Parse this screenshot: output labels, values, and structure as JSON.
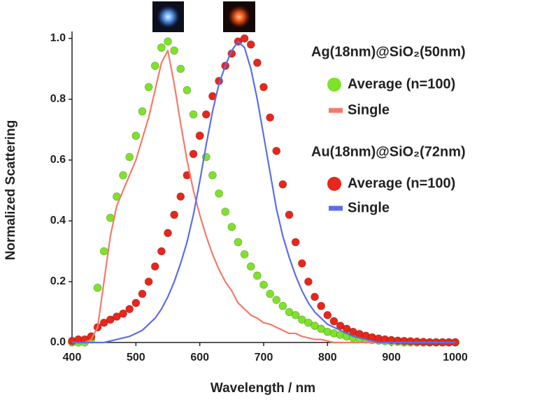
{
  "chart_data": {
    "type": "scatter",
    "x_label": "Wavelength / nm",
    "y_label": "Normalized Scattering",
    "legend_titles": [
      "Ag(18nm)@SiO₂(50nm)",
      "Au(18nm)@SiO₂(72nm)"
    ],
    "xlim": [
      400,
      1000
    ],
    "xticks": [
      400,
      500,
      600,
      700,
      800,
      900,
      1000
    ],
    "ylim": [
      0,
      1
    ],
    "yticks": [
      {
        "value": 0,
        "label": "0.0"
      },
      0.2,
      0.4,
      0.6,
      0.8,
      {
        "value": 1,
        "label": "1.0"
      }
    ],
    "x": [
      400,
      410,
      420,
      430,
      440,
      450,
      460,
      470,
      480,
      490,
      500,
      510,
      520,
      530,
      540,
      550,
      560,
      570,
      580,
      590,
      600,
      610,
      620,
      630,
      640,
      650,
      660,
      670,
      680,
      690,
      700,
      710,
      720,
      730,
      740,
      750,
      760,
      770,
      780,
      790,
      800,
      810,
      820,
      830,
      840,
      850,
      860,
      870,
      880,
      890,
      900,
      910,
      920,
      930,
      940,
      950,
      960,
      970,
      980,
      990,
      1000
    ],
    "series": [
      {
        "name": "Average (n=100)",
        "mode": "markers",
        "color": "#7fe22a",
        "values": [
          0,
          0,
          0,
          0.01,
          0.18,
          0.3,
          0.41,
          0.48,
          0.55,
          0.61,
          0.68,
          0.76,
          0.84,
          0.91,
          0.97,
          0.99,
          0.96,
          0.9,
          0.83,
          0.75,
          0.68,
          0.61,
          0.55,
          0.49,
          0.43,
          0.38,
          0.33,
          0.29,
          0.25,
          0.22,
          0.19,
          0.16,
          0.14,
          0.12,
          0.1,
          0.09,
          0.075,
          0.065,
          0.055,
          0.045,
          0.035,
          0.03,
          0.025,
          0.02,
          0.015,
          0.012,
          0.01,
          0.008,
          0.006,
          0.004,
          0.003,
          0.002,
          0,
          0,
          0,
          0,
          0,
          0,
          0,
          0,
          0
        ]
      },
      {
        "name": "Single",
        "mode": "line",
        "color": "#f47a68",
        "values": [
          0,
          0,
          0,
          0.01,
          0.05,
          0.2,
          0.35,
          0.45,
          0.5,
          0.55,
          0.6,
          0.67,
          0.74,
          0.83,
          0.92,
          0.96,
          0.85,
          0.72,
          0.6,
          0.5,
          0.42,
          0.35,
          0.29,
          0.24,
          0.2,
          0.17,
          0.13,
          0.11,
          0.09,
          0.08,
          0.065,
          0.06,
          0.05,
          0.04,
          0.03,
          0.03,
          0.02,
          0.015,
          0.01,
          0.01,
          0.005,
          0,
          0,
          0,
          0,
          0,
          0,
          0,
          0,
          0,
          0,
          0,
          0,
          0,
          0,
          0,
          0,
          0,
          0,
          0,
          0
        ]
      },
      {
        "name": "Average (n=100)",
        "mode": "markers",
        "color": "#e8261c",
        "values": [
          0.005,
          0.01,
          0.01,
          0.02,
          0.05,
          0.065,
          0.075,
          0.085,
          0.095,
          0.11,
          0.13,
          0.16,
          0.2,
          0.25,
          0.3,
          0.36,
          0.42,
          0.48,
          0.55,
          0.62,
          0.68,
          0.75,
          0.81,
          0.86,
          0.91,
          0.95,
          0.99,
          1.0,
          0.98,
          0.92,
          0.84,
          0.74,
          0.63,
          0.52,
          0.42,
          0.33,
          0.26,
          0.2,
          0.15,
          0.12,
          0.09,
          0.07,
          0.055,
          0.045,
          0.035,
          0.028,
          0.022,
          0.017,
          0.013,
          0.01,
          0.008,
          0.006,
          0.005,
          0.004,
          0.003,
          0.002,
          0.001,
          0.001,
          0.001,
          0.001,
          0.001
        ]
      },
      {
        "name": "Single",
        "mode": "line",
        "color": "#5a6ee8",
        "values": [
          0,
          0,
          0,
          0,
          0,
          0,
          0.005,
          0.01,
          0.015,
          0.02,
          0.03,
          0.04,
          0.06,
          0.08,
          0.11,
          0.15,
          0.2,
          0.26,
          0.33,
          0.42,
          0.53,
          0.65,
          0.76,
          0.85,
          0.91,
          0.96,
          0.99,
          0.97,
          0.9,
          0.8,
          0.68,
          0.56,
          0.44,
          0.35,
          0.28,
          0.22,
          0.17,
          0.13,
          0.1,
          0.08,
          0.06,
          0.05,
          0.04,
          0.03,
          0.02,
          0.015,
          0.01,
          0.005,
          0,
          0,
          0,
          0,
          0,
          0,
          0,
          0,
          0,
          0,
          0,
          0,
          0
        ]
      }
    ]
  }
}
